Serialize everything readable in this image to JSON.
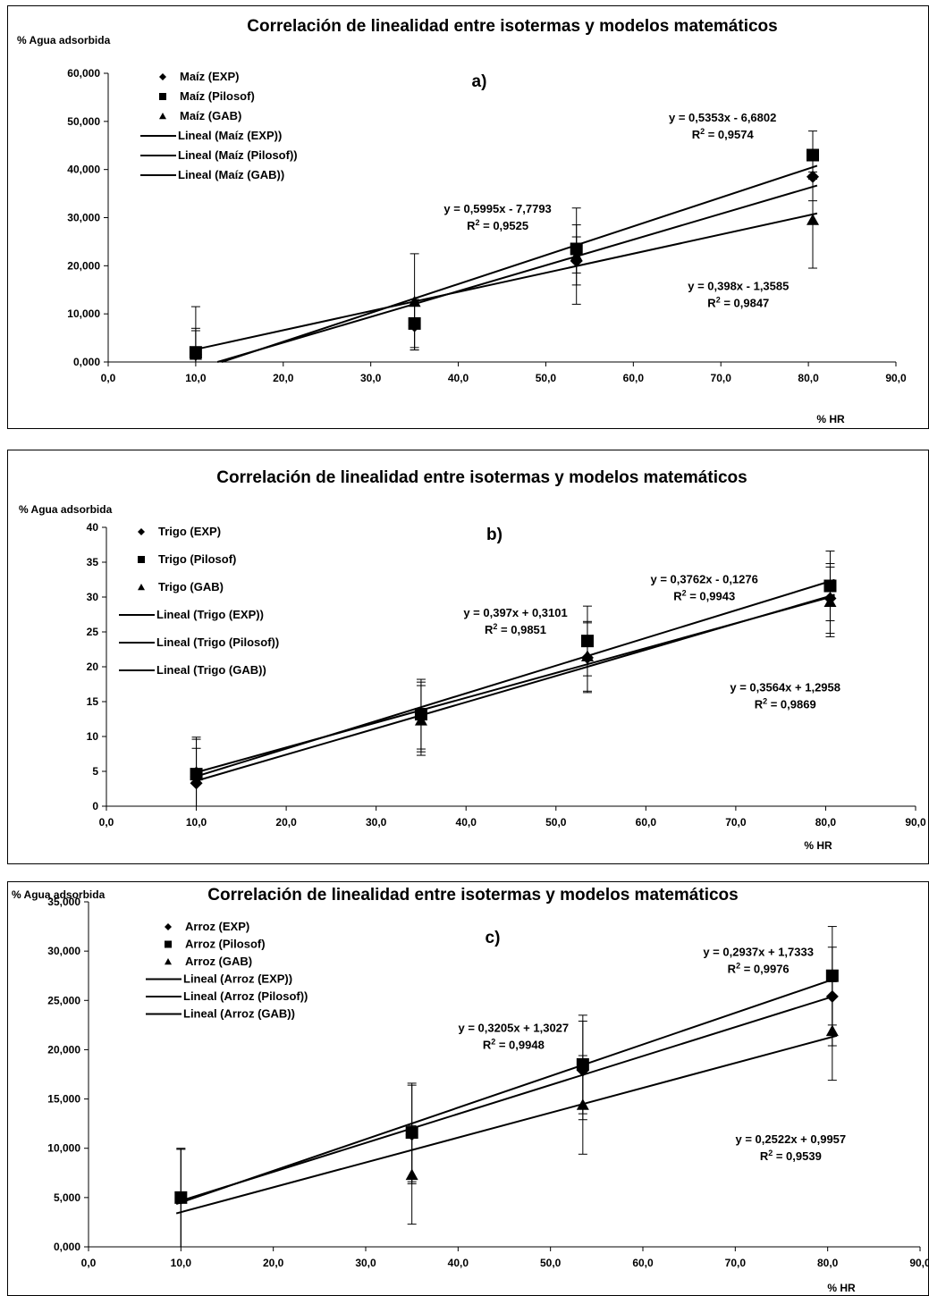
{
  "chart_data": [
    {
      "panel": "a",
      "type": "scatter",
      "title": "Correlación de linealidad entre isotermas y modelos matemáticos",
      "ylabel": "% Agua adsorbida",
      "xlabel": "% HR",
      "panel_label": "a)",
      "xlim": [
        0,
        90
      ],
      "ylim": [
        0,
        60
      ],
      "x_ticks": [
        "0,0",
        "10,0",
        "20,0",
        "30,0",
        "40,0",
        "50,0",
        "60,0",
        "70,0",
        "80,0",
        "90,0"
      ],
      "y_ticks": [
        "0,000",
        "10,000",
        "20,000",
        "30,000",
        "40,000",
        "50,000",
        "60,000"
      ],
      "legend": [
        "Maíz (EXP)",
        "Maíz (Pilosof)",
        "Maíz (GAB)",
        "Lineal (Maíz (EXP))",
        "Lineal (Maíz (Pilosof))",
        "Lineal (Maíz (GAB))"
      ],
      "legend_placement": "top-left",
      "series": [
        {
          "name": "Maíz (EXP)",
          "marker": "diamond",
          "x": [
            10,
            35,
            53.5,
            80.5
          ],
          "y": [
            1.5,
            7.5,
            21,
            38.5
          ],
          "err": [
            5,
            5,
            5,
            5
          ],
          "fit": {
            "slope": 0.5353,
            "intercept": -6.6802
          }
        },
        {
          "name": "Maíz (Pilosof)",
          "marker": "square",
          "x": [
            10,
            35,
            53.5,
            80.5
          ],
          "y": [
            2,
            8,
            23.5,
            43
          ],
          "err": [
            5,
            5,
            5,
            5
          ],
          "fit": {
            "slope": 0.5995,
            "intercept": -7.7793
          }
        },
        {
          "name": "Maíz (GAB)",
          "marker": "triangle",
          "x": [
            10,
            35,
            53.5,
            80.5
          ],
          "y": [
            1.5,
            12.5,
            22,
            29.5
          ],
          "err": [
            10,
            10,
            10,
            10
          ],
          "fit": {
            "slope": 0.398,
            "intercept": -1.3585
          }
        }
      ],
      "annotations": [
        {
          "eq": "y = 0,5353x - 6,6802",
          "r2": "0,9574",
          "ax": 70.2,
          "ay": 50
        },
        {
          "eq": "y = 0,5995x - 7,7793",
          "r2": "0,9525",
          "ax": 44.5,
          "ay": 31
        },
        {
          "eq": "y = 0,398x - 1,3585",
          "r2": "0,9847",
          "ax": 72,
          "ay": 15
        }
      ]
    },
    {
      "panel": "b",
      "type": "scatter",
      "title": "Correlación de linealidad entre isotermas y modelos matemáticos",
      "ylabel": "% Agua adsorbida",
      "xlabel": "% HR",
      "panel_label": "b)",
      "xlim": [
        0,
        90
      ],
      "ylim": [
        0,
        40
      ],
      "x_ticks": [
        "0,0",
        "10,0",
        "20,0",
        "30,0",
        "40,0",
        "50,0",
        "60,0",
        "70,0",
        "80,0",
        "90,0"
      ],
      "y_ticks": [
        "0",
        "5",
        "10",
        "15",
        "20",
        "25",
        "30",
        "35",
        "40"
      ],
      "legend": [
        "Trigo (EXP)",
        "Trigo (Pilosof)",
        "Trigo (GAB)",
        "Lineal (Trigo (EXP))",
        "Lineal (Trigo (Pilosof))",
        "Lineal (Trigo (GAB))"
      ],
      "legend_placement": "top-left",
      "series": [
        {
          "name": "Trigo (EXP)",
          "marker": "diamond",
          "x": [
            10,
            35,
            53.5,
            80.5
          ],
          "y": [
            3.3,
            12.8,
            21.3,
            29.8
          ],
          "err": [
            5,
            5,
            5,
            5
          ],
          "fit": {
            "slope": 0.397,
            "intercept": 0.3101
          }
        },
        {
          "name": "Trigo (Pilosof)",
          "marker": "square",
          "x": [
            10,
            35,
            53.5,
            80.5
          ],
          "y": [
            4.6,
            13.2,
            23.7,
            31.6
          ],
          "err": [
            5,
            5,
            5,
            5
          ],
          "fit": {
            "slope": 0.3762,
            "intercept": -0.1276
          }
        },
        {
          "name": "Trigo (GAB)",
          "marker": "triangle",
          "x": [
            10,
            35,
            53.5,
            80.5
          ],
          "y": [
            4.9,
            12.3,
            21.5,
            29.3
          ],
          "err": [
            5,
            5,
            5,
            5
          ],
          "fit": {
            "slope": 0.3564,
            "intercept": 1.2958
          }
        }
      ],
      "annotations": [
        {
          "eq": "y = 0,3762x - 0,1276",
          "r2": "0,9943",
          "ax": 66.5,
          "ay": 32
        },
        {
          "eq": "y = 0,397x + 0,3101",
          "r2": "0,9851",
          "ax": 45.5,
          "ay": 27.2
        },
        {
          "eq": "y = 0,3564x + 1,2958",
          "r2": "0,9869",
          "ax": 75.5,
          "ay": 16.5
        }
      ]
    },
    {
      "panel": "c",
      "type": "scatter",
      "title": "Correlación de linealidad entre isotermas y modelos matemáticos",
      "ylabel": "% Agua adsorbida",
      "xlabel": "% HR",
      "panel_label": "c)",
      "xlim": [
        0,
        90
      ],
      "ylim": [
        0,
        35
      ],
      "x_ticks": [
        "0,0",
        "10,0",
        "20,0",
        "30,0",
        "40,0",
        "50,0",
        "60,0",
        "70,0",
        "80,0",
        "90,0"
      ],
      "y_ticks": [
        "0,000",
        "5,000",
        "10,000",
        "15,000",
        "20,000",
        "25,000",
        "30,000",
        "35,000"
      ],
      "legend": [
        "Arroz (EXP)",
        "Arroz (Pilosof)",
        "Arroz (GAB)",
        "Lineal (Arroz (EXP))",
        "Lineal (Arroz (Pilosof))",
        "Lineal (Arroz (GAB))"
      ],
      "legend_placement": "top-left",
      "series": [
        {
          "name": "Arroz (EXP)",
          "marker": "diamond",
          "x": [
            10,
            35,
            53.5,
            80.5
          ],
          "y": [
            4.9,
            11.4,
            17.9,
            25.4
          ],
          "err": [
            5,
            5,
            5,
            5
          ],
          "fit": {
            "slope": 0.2937,
            "intercept": 1.7333
          }
        },
        {
          "name": "Arroz (Pilosof)",
          "marker": "square",
          "x": [
            10,
            35,
            53.5,
            80.5
          ],
          "y": [
            5,
            11.6,
            18.5,
            27.5
          ],
          "err": [
            5,
            5,
            5,
            5
          ],
          "fit": {
            "slope": 0.3205,
            "intercept": 1.3027
          }
        },
        {
          "name": "Arroz (GAB)",
          "marker": "triangle",
          "x": [
            10,
            35,
            53.5,
            80.5
          ],
          "y": [
            4.9,
            7.3,
            14.4,
            21.9
          ],
          "err": [
            5,
            5,
            5,
            5
          ],
          "fit": {
            "slope": 0.2522,
            "intercept": 0.9957
          }
        }
      ],
      "annotations": [
        {
          "eq": "y = 0,2937x + 1,7333",
          "r2": "0,9976",
          "ax": 72.5,
          "ay": 29.5
        },
        {
          "eq": "y = 0,3205x + 1,3027",
          "r2": "0,9948",
          "ax": 46,
          "ay": 21.8
        },
        {
          "eq": "y = 0,2522x + 0,9957",
          "r2": "0,9539",
          "ax": 76,
          "ay": 10.5
        }
      ]
    }
  ]
}
